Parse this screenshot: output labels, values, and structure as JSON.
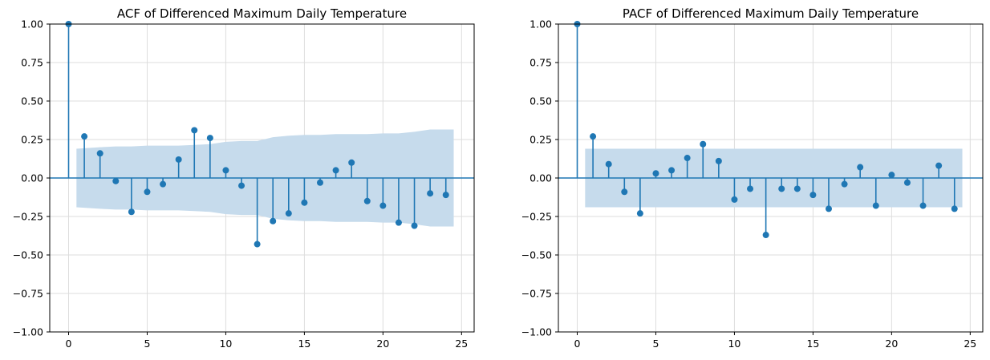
{
  "chart_data": [
    {
      "type": "stem",
      "title": "ACF of Differenced Maximum Daily Temperature",
      "xlabel": "",
      "ylabel": "",
      "xlim": [
        -1.2,
        25.8
      ],
      "ylim": [
        -1.0,
        1.0
      ],
      "xticks": [
        0,
        5,
        10,
        15,
        20,
        25
      ],
      "xtick_labels": [
        "0",
        "5",
        "10",
        "15",
        "20",
        "25"
      ],
      "yticks": [
        -1.0,
        -0.75,
        -0.5,
        -0.25,
        0.0,
        0.25,
        0.5,
        0.75,
        1.0
      ],
      "ytick_labels": [
        "−1.00",
        "−0.75",
        "−0.50",
        "−0.25",
        "0.00",
        "0.25",
        "0.50",
        "0.75",
        "1.00"
      ],
      "grid": true,
      "x": [
        0,
        1,
        2,
        3,
        4,
        5,
        6,
        7,
        8,
        9,
        10,
        11,
        12,
        13,
        14,
        15,
        16,
        17,
        18,
        19,
        20,
        21,
        22,
        23,
        24
      ],
      "values": [
        1.0,
        0.27,
        0.16,
        -0.02,
        -0.22,
        -0.09,
        -0.04,
        0.12,
        0.31,
        0.26,
        0.05,
        -0.05,
        -0.43,
        -0.28,
        -0.23,
        -0.16,
        -0.03,
        0.05,
        0.1,
        -0.15,
        -0.18,
        -0.29,
        -0.31,
        -0.1,
        -0.11
      ],
      "confidence_band": {
        "x": [
          0.5,
          2,
          3,
          4,
          5,
          6,
          7,
          8,
          9,
          10,
          11,
          12,
          13,
          14,
          15,
          16,
          17,
          18,
          19,
          20,
          21,
          22,
          23,
          24.5
        ],
        "upper": [
          0.19,
          0.2,
          0.205,
          0.205,
          0.21,
          0.21,
          0.21,
          0.215,
          0.22,
          0.235,
          0.24,
          0.24,
          0.265,
          0.275,
          0.28,
          0.28,
          0.285,
          0.285,
          0.285,
          0.29,
          0.29,
          0.3,
          0.315,
          0.315
        ]
      },
      "colors": {
        "stem": "#1f77b4",
        "band": "#c6dbec",
        "zero_line": "#1f77b4"
      }
    },
    {
      "type": "stem",
      "title": "PACF of Differenced Maximum Daily Temperature",
      "xlabel": "",
      "ylabel": "",
      "xlim": [
        -1.2,
        25.8
      ],
      "ylim": [
        -1.0,
        1.0
      ],
      "xticks": [
        0,
        5,
        10,
        15,
        20,
        25
      ],
      "xtick_labels": [
        "0",
        "5",
        "10",
        "15",
        "20",
        "25"
      ],
      "yticks": [
        -1.0,
        -0.75,
        -0.5,
        -0.25,
        0.0,
        0.25,
        0.5,
        0.75,
        1.0
      ],
      "ytick_labels": [
        "−1.00",
        "−0.75",
        "−0.50",
        "−0.25",
        "0.00",
        "0.25",
        "0.50",
        "0.75",
        "1.00"
      ],
      "grid": true,
      "x": [
        0,
        1,
        2,
        3,
        4,
        5,
        6,
        7,
        8,
        9,
        10,
        11,
        12,
        13,
        14,
        15,
        16,
        17,
        18,
        19,
        20,
        21,
        22,
        23,
        24
      ],
      "values": [
        1.0,
        0.27,
        0.09,
        -0.09,
        -0.23,
        0.03,
        0.05,
        0.13,
        0.22,
        0.11,
        -0.14,
        -0.07,
        -0.37,
        -0.07,
        -0.07,
        -0.11,
        -0.2,
        -0.04,
        0.07,
        -0.18,
        0.02,
        -0.03,
        -0.18,
        0.08,
        -0.2
      ],
      "confidence_band": {
        "x": [
          0.5,
          24.5
        ],
        "upper": [
          0.19,
          0.19
        ]
      },
      "colors": {
        "stem": "#1f77b4",
        "band": "#c6dbec",
        "zero_line": "#1f77b4"
      }
    }
  ]
}
